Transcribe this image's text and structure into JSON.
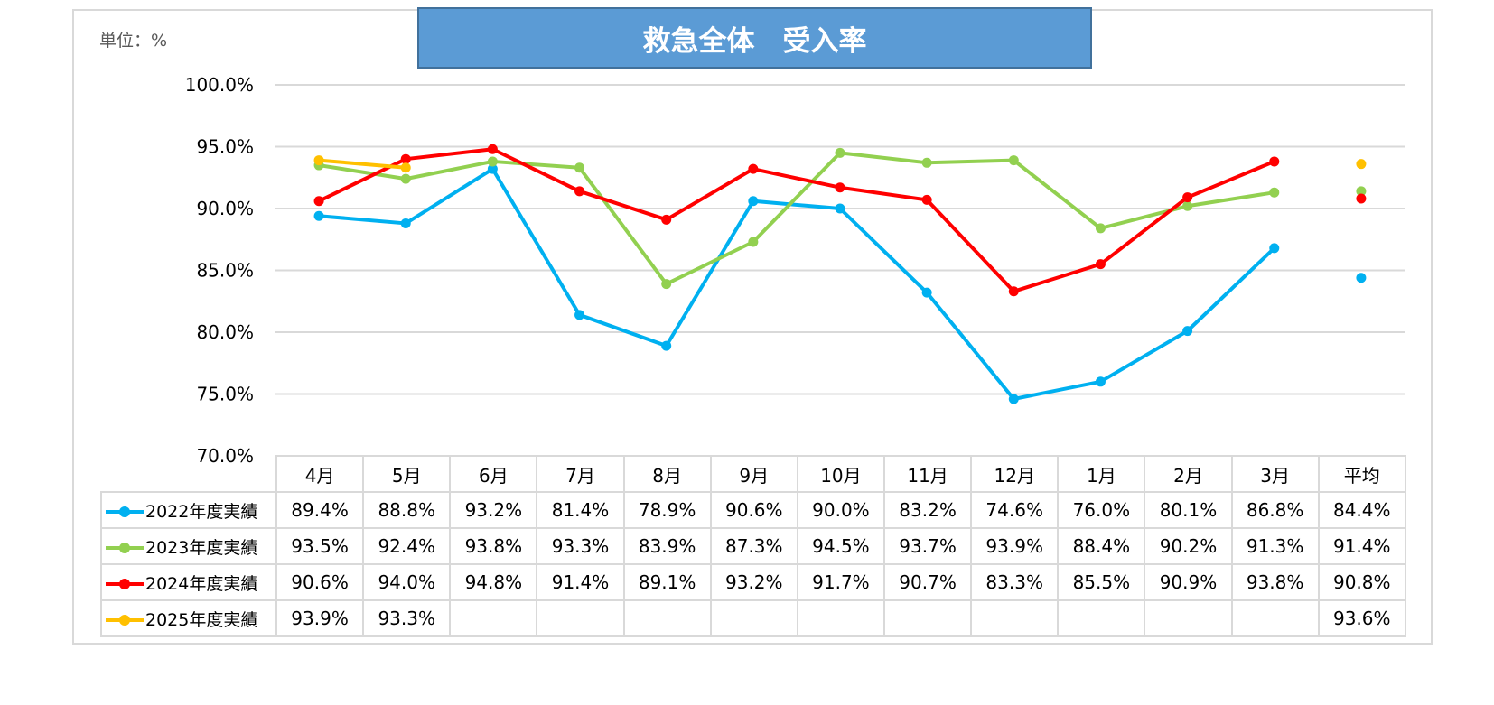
{
  "unit_label": "単位：%",
  "chart_data": {
    "type": "line",
    "title": "救急全体　受入率",
    "categories": [
      "4月",
      "5月",
      "6月",
      "7月",
      "8月",
      "9月",
      "10月",
      "11月",
      "12月",
      "1月",
      "2月",
      "3月"
    ],
    "average_label": "平均",
    "ylim": [
      70,
      100
    ],
    "yticks": [
      "100.0%",
      "95.0%",
      "90.0%",
      "85.0%",
      "80.0%",
      "75.0%",
      "70.0%"
    ],
    "grid": true,
    "series": [
      {
        "name": "2022年度実績",
        "color": "#00b0f0",
        "values": [
          89.4,
          88.8,
          93.2,
          81.4,
          78.9,
          90.6,
          90.0,
          83.2,
          74.6,
          76.0,
          80.1,
          86.8
        ],
        "labels": [
          "89.4%",
          "88.8%",
          "93.2%",
          "81.4%",
          "78.9%",
          "90.6%",
          "90.0%",
          "83.2%",
          "74.6%",
          "76.0%",
          "80.1%",
          "86.8%"
        ],
        "average": 84.4,
        "average_label": "84.4%"
      },
      {
        "name": "2023年度実績",
        "color": "#92d050",
        "values": [
          93.5,
          92.4,
          93.8,
          93.3,
          83.9,
          87.3,
          94.5,
          93.7,
          93.9,
          88.4,
          90.2,
          91.3
        ],
        "labels": [
          "93.5%",
          "92.4%",
          "93.8%",
          "93.3%",
          "83.9%",
          "87.3%",
          "94.5%",
          "93.7%",
          "93.9%",
          "88.4%",
          "90.2%",
          "91.3%"
        ],
        "average": 91.4,
        "average_label": "91.4%"
      },
      {
        "name": "2024年度実績",
        "color": "#ff0000",
        "values": [
          90.6,
          94.0,
          94.8,
          91.4,
          89.1,
          93.2,
          91.7,
          90.7,
          83.3,
          85.5,
          90.9,
          93.8
        ],
        "labels": [
          "90.6%",
          "94.0%",
          "94.8%",
          "91.4%",
          "89.1%",
          "93.2%",
          "91.7%",
          "90.7%",
          "83.3%",
          "85.5%",
          "90.9%",
          "93.8%"
        ],
        "average": 90.8,
        "average_label": "90.8%"
      },
      {
        "name": "2025年度実績",
        "color": "#ffc000",
        "values": [
          93.9,
          93.3,
          null,
          null,
          null,
          null,
          null,
          null,
          null,
          null,
          null,
          null
        ],
        "labels": [
          "93.9%",
          "93.3%",
          "",
          "",
          "",
          "",
          "",
          "",
          "",
          "",
          "",
          ""
        ],
        "average": 93.6,
        "average_label": "93.6%"
      }
    ]
  }
}
